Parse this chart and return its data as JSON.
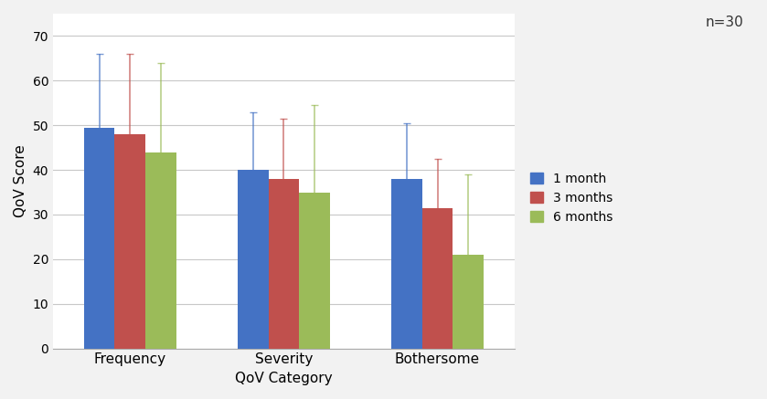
{
  "categories": [
    "Frequency",
    "Severity",
    "Bothersome"
  ],
  "series": {
    "1 month": {
      "values": [
        49.5,
        40.0,
        38.0
      ],
      "errors": [
        16.5,
        13.0,
        12.5
      ],
      "color": "#4472C4"
    },
    "3 months": {
      "values": [
        48.0,
        38.0,
        31.5
      ],
      "errors": [
        18.0,
        13.5,
        11.0
      ],
      "color": "#C0504D"
    },
    "6 months": {
      "values": [
        44.0,
        35.0,
        21.0
      ],
      "errors": [
        20.0,
        19.5,
        18.0
      ],
      "color": "#9BBB59"
    }
  },
  "ylabel": "QoV Score",
  "xlabel": "QoV Category",
  "ylim": [
    0,
    75
  ],
  "yticks": [
    0,
    10,
    20,
    30,
    40,
    50,
    60,
    70
  ],
  "bar_width": 0.2,
  "legend_labels": [
    "1 month",
    "3 months",
    "6 months"
  ],
  "annotation": "n=30",
  "figure_facecolor": "#F2F2F2",
  "axes_facecolor": "#FFFFFF",
  "grid_color": "#C8C8C8"
}
